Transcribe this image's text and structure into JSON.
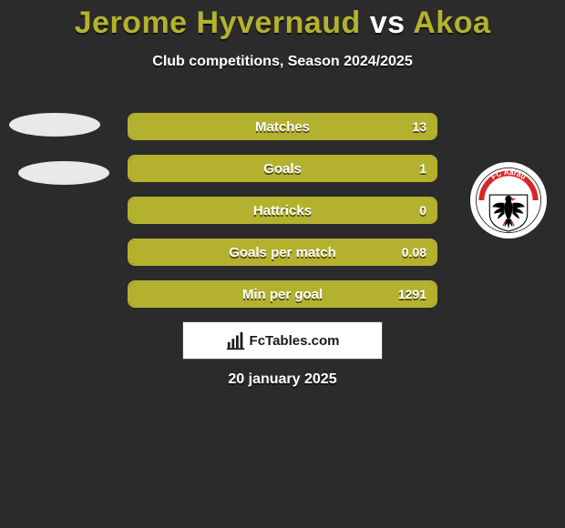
{
  "colors": {
    "accent": "#b4b12f",
    "background": "#2b2b2b",
    "text": "#ffffff",
    "subtext_shadow": "rgba(0,0,0,0.6)",
    "footer_bg": "#ffffff",
    "footer_text": "#1a1a1a"
  },
  "title": {
    "player1": "Jerome Hyvernaud",
    "vs": "vs",
    "player2": "Akoa"
  },
  "subtitle": "Club competitions, Season 2024/2025",
  "stats": [
    {
      "label": "Matches",
      "value": "13",
      "fill_pct": 100
    },
    {
      "label": "Goals",
      "value": "1",
      "fill_pct": 100
    },
    {
      "label": "Hattricks",
      "value": "0",
      "fill_pct": 100
    },
    {
      "label": "Goals per match",
      "value": "0.08",
      "fill_pct": 100
    },
    {
      "label": "Min per goal",
      "value": "1291",
      "fill_pct": 100
    }
  ],
  "badge": {
    "name": "fc-aarau",
    "arc_color": "#d62828",
    "arc_text": "FC Aarau",
    "eagle_color": "#000000",
    "tongue_color": "#d62828"
  },
  "footer": {
    "brand": "FcTables.com",
    "icon": "barchart-icon"
  },
  "date": "20 january 2025"
}
